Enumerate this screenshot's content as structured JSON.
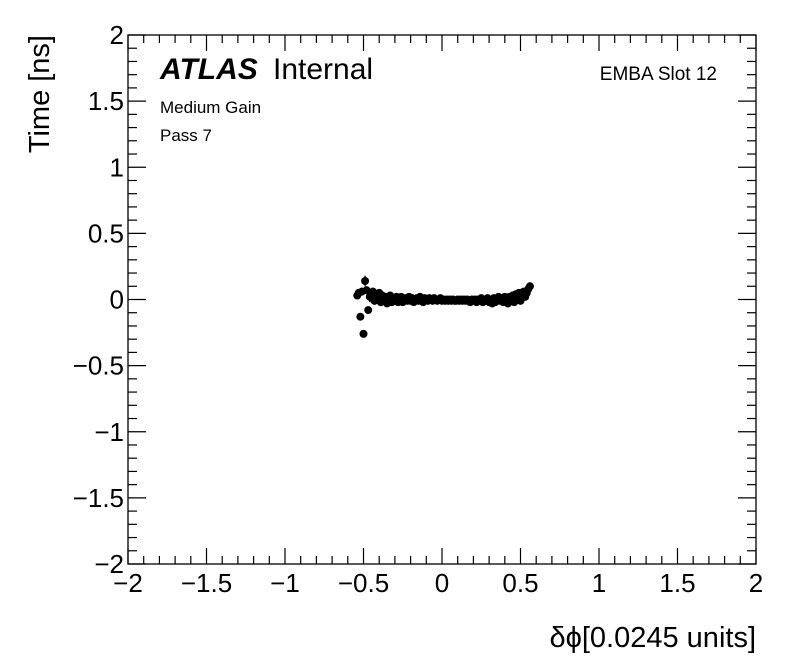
{
  "chart_data": {
    "type": "scatter",
    "title": "",
    "xlabel": "δϕ[0.0245 units]",
    "ylabel": "Time [ns]",
    "xlim": [
      -2,
      2
    ],
    "ylim": [
      -2,
      2
    ],
    "xticks": [
      -2,
      -1.5,
      -1,
      -0.5,
      0,
      0.5,
      1,
      1.5,
      2
    ],
    "yticks": [
      -2,
      -1.5,
      -1,
      -0.5,
      0,
      0.5,
      1,
      1.5,
      2
    ],
    "xtick_labels": [
      "−2",
      "−1.5",
      "−1",
      "−0.5",
      "0",
      "0.5",
      "1",
      "1.5",
      "2"
    ],
    "ytick_labels": [
      "−2",
      "−1.5",
      "−1",
      "−0.5",
      "0",
      "0.5",
      "1",
      "1.5",
      "2"
    ],
    "grid": false,
    "annotations": {
      "atlas": "ATLAS",
      "internal": "Internal",
      "gain": "Medium Gain",
      "pass": "Pass 7",
      "slot": "EMBA Slot 12"
    },
    "points": [
      {
        "x": -0.54,
        "y": 0.03,
        "err": 0.02
      },
      {
        "x": -0.53,
        "y": 0.05,
        "err": 0.02
      },
      {
        "x": -0.52,
        "y": -0.13,
        "err": 0.015
      },
      {
        "x": -0.51,
        "y": 0.06,
        "err": 0.03
      },
      {
        "x": -0.5,
        "y": -0.26,
        "err": 0.015
      },
      {
        "x": -0.49,
        "y": 0.14,
        "err": 0.04
      },
      {
        "x": -0.48,
        "y": 0.07,
        "err": 0.03
      },
      {
        "x": -0.47,
        "y": -0.08,
        "err": 0.02
      },
      {
        "x": -0.46,
        "y": 0.02,
        "err": 0.04
      },
      {
        "x": -0.45,
        "y": 0.03,
        "err": 0.03
      },
      {
        "x": -0.44,
        "y": 0.06,
        "err": 0.03
      },
      {
        "x": -0.43,
        "y": -0.01,
        "err": 0.03
      },
      {
        "x": -0.42,
        "y": 0.04,
        "err": 0.03
      },
      {
        "x": -0.41,
        "y": 0.0,
        "err": 0.03
      },
      {
        "x": -0.4,
        "y": 0.05,
        "err": 0.02
      },
      {
        "x": -0.39,
        "y": -0.02,
        "err": 0.03
      },
      {
        "x": -0.38,
        "y": 0.03,
        "err": 0.02
      },
      {
        "x": -0.37,
        "y": 0.0,
        "err": 0.02
      },
      {
        "x": -0.36,
        "y": 0.02,
        "err": 0.02
      },
      {
        "x": -0.35,
        "y": -0.03,
        "err": 0.02
      },
      {
        "x": -0.34,
        "y": 0.01,
        "err": 0.02
      },
      {
        "x": -0.33,
        "y": 0.03,
        "err": 0.02
      },
      {
        "x": -0.32,
        "y": -0.02,
        "err": 0.02
      },
      {
        "x": -0.31,
        "y": 0.01,
        "err": 0.02
      },
      {
        "x": -0.3,
        "y": -0.01,
        "err": 0.02
      },
      {
        "x": -0.29,
        "y": 0.02,
        "err": 0.02
      },
      {
        "x": -0.28,
        "y": -0.02,
        "err": 0.02
      },
      {
        "x": -0.27,
        "y": 0.0,
        "err": 0.02
      },
      {
        "x": -0.26,
        "y": 0.02,
        "err": 0.02
      },
      {
        "x": -0.25,
        "y": -0.02,
        "err": 0.02
      },
      {
        "x": -0.24,
        "y": 0.0,
        "err": 0.02
      },
      {
        "x": -0.23,
        "y": 0.01,
        "err": 0.02
      },
      {
        "x": -0.22,
        "y": -0.01,
        "err": 0.02
      },
      {
        "x": -0.21,
        "y": 0.02,
        "err": 0.02
      },
      {
        "x": -0.2,
        "y": -0.01,
        "err": 0.02
      },
      {
        "x": -0.19,
        "y": 0.01,
        "err": 0.02
      },
      {
        "x": -0.18,
        "y": -0.02,
        "err": 0.02
      },
      {
        "x": -0.17,
        "y": 0.0,
        "err": 0.02
      },
      {
        "x": -0.16,
        "y": 0.01,
        "err": 0.02
      },
      {
        "x": -0.15,
        "y": -0.01,
        "err": 0.02
      },
      {
        "x": -0.14,
        "y": 0.02,
        "err": 0.02
      },
      {
        "x": -0.13,
        "y": 0.0,
        "err": 0.02
      },
      {
        "x": -0.12,
        "y": -0.02,
        "err": 0.02
      },
      {
        "x": -0.11,
        "y": 0.01,
        "err": 0.02
      },
      {
        "x": -0.1,
        "y": 0.0,
        "err": 0.02
      },
      {
        "x": -0.09,
        "y": -0.01,
        "err": 0.02
      },
      {
        "x": -0.08,
        "y": 0.01,
        "err": 0.02
      },
      {
        "x": -0.07,
        "y": 0.0,
        "err": 0.02
      },
      {
        "x": -0.06,
        "y": -0.01,
        "err": 0.02
      },
      {
        "x": -0.05,
        "y": 0.01,
        "err": 0.02
      },
      {
        "x": -0.04,
        "y": 0.0,
        "err": 0.02
      },
      {
        "x": -0.03,
        "y": -0.01,
        "err": 0.02
      },
      {
        "x": -0.02,
        "y": 0.0,
        "err": 0.02
      },
      {
        "x": -0.01,
        "y": 0.01,
        "err": 0.02
      },
      {
        "x": 0.0,
        "y": -0.01,
        "err": 0.02
      },
      {
        "x": 0.01,
        "y": 0.0,
        "err": 0.02
      },
      {
        "x": 0.02,
        "y": -0.01,
        "err": 0.02
      },
      {
        "x": 0.03,
        "y": 0.0,
        "err": 0.02
      },
      {
        "x": 0.04,
        "y": -0.01,
        "err": 0.02
      },
      {
        "x": 0.05,
        "y": 0.0,
        "err": 0.02
      },
      {
        "x": 0.06,
        "y": -0.01,
        "err": 0.02
      },
      {
        "x": 0.07,
        "y": 0.0,
        "err": 0.02
      },
      {
        "x": 0.08,
        "y": -0.01,
        "err": 0.02
      },
      {
        "x": 0.09,
        "y": -0.01,
        "err": 0.02
      },
      {
        "x": 0.1,
        "y": 0.0,
        "err": 0.02
      },
      {
        "x": 0.11,
        "y": -0.01,
        "err": 0.02
      },
      {
        "x": 0.12,
        "y": 0.0,
        "err": 0.02
      },
      {
        "x": 0.13,
        "y": -0.01,
        "err": 0.02
      },
      {
        "x": 0.14,
        "y": 0.0,
        "err": 0.02
      },
      {
        "x": 0.15,
        "y": -0.01,
        "err": 0.02
      },
      {
        "x": 0.16,
        "y": 0.0,
        "err": 0.02
      },
      {
        "x": 0.17,
        "y": -0.01,
        "err": 0.02
      },
      {
        "x": 0.18,
        "y": -0.02,
        "err": 0.02
      },
      {
        "x": 0.19,
        "y": 0.0,
        "err": 0.02
      },
      {
        "x": 0.2,
        "y": -0.01,
        "err": 0.02
      },
      {
        "x": 0.21,
        "y": 0.0,
        "err": 0.02
      },
      {
        "x": 0.22,
        "y": -0.02,
        "err": 0.02
      },
      {
        "x": 0.23,
        "y": 0.0,
        "err": 0.02
      },
      {
        "x": 0.24,
        "y": -0.01,
        "err": 0.02
      },
      {
        "x": 0.25,
        "y": 0.01,
        "err": 0.02
      },
      {
        "x": 0.26,
        "y": -0.02,
        "err": 0.02
      },
      {
        "x": 0.27,
        "y": 0.0,
        "err": 0.02
      },
      {
        "x": 0.28,
        "y": -0.01,
        "err": 0.02
      },
      {
        "x": 0.29,
        "y": 0.01,
        "err": 0.02
      },
      {
        "x": 0.3,
        "y": -0.02,
        "err": 0.02
      },
      {
        "x": 0.31,
        "y": 0.0,
        "err": 0.02
      },
      {
        "x": 0.32,
        "y": -0.03,
        "err": 0.02
      },
      {
        "x": 0.33,
        "y": 0.01,
        "err": 0.02
      },
      {
        "x": 0.34,
        "y": -0.02,
        "err": 0.02
      },
      {
        "x": 0.35,
        "y": 0.0,
        "err": 0.02
      },
      {
        "x": 0.36,
        "y": 0.02,
        "err": 0.02
      },
      {
        "x": 0.37,
        "y": -0.01,
        "err": 0.02
      },
      {
        "x": 0.38,
        "y": 0.01,
        "err": 0.02
      },
      {
        "x": 0.39,
        "y": -0.02,
        "err": 0.02
      },
      {
        "x": 0.4,
        "y": 0.02,
        "err": 0.02
      },
      {
        "x": 0.41,
        "y": 0.0,
        "err": 0.02
      },
      {
        "x": 0.42,
        "y": -0.03,
        "err": 0.02
      },
      {
        "x": 0.43,
        "y": 0.02,
        "err": 0.02
      },
      {
        "x": 0.44,
        "y": 0.0,
        "err": 0.02
      },
      {
        "x": 0.45,
        "y": 0.03,
        "err": 0.02
      },
      {
        "x": 0.46,
        "y": -0.02,
        "err": 0.02
      },
      {
        "x": 0.47,
        "y": 0.04,
        "err": 0.02
      },
      {
        "x": 0.48,
        "y": 0.01,
        "err": 0.02
      },
      {
        "x": 0.49,
        "y": 0.05,
        "err": 0.02
      },
      {
        "x": 0.5,
        "y": -0.01,
        "err": 0.02
      },
      {
        "x": 0.51,
        "y": 0.03,
        "err": 0.02
      },
      {
        "x": 0.52,
        "y": 0.06,
        "err": 0.02
      },
      {
        "x": 0.53,
        "y": 0.02,
        "err": 0.02
      },
      {
        "x": 0.54,
        "y": 0.05,
        "err": 0.02
      },
      {
        "x": 0.55,
        "y": 0.08,
        "err": 0.03
      },
      {
        "x": 0.56,
        "y": 0.1,
        "err": 0.03
      }
    ]
  }
}
